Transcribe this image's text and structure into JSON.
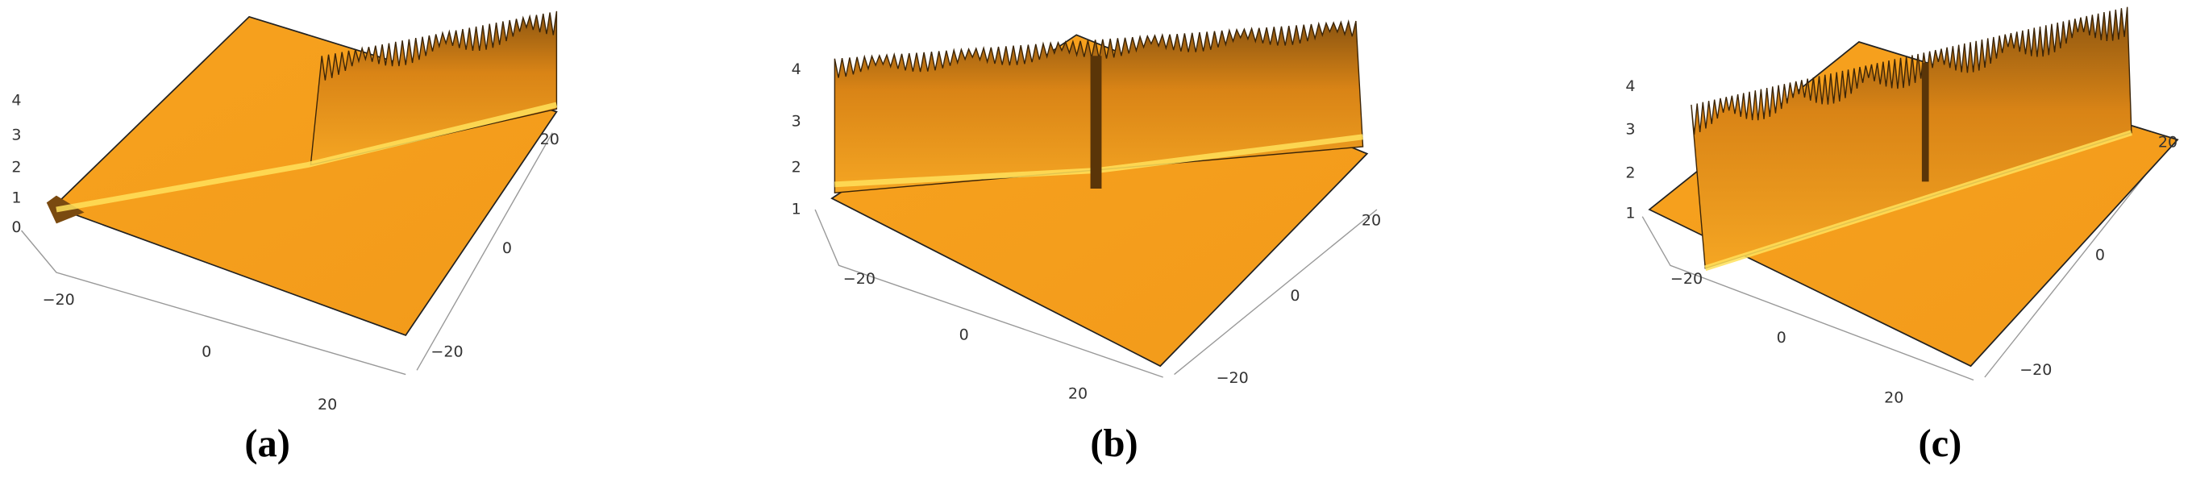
{
  "panels": [
    {
      "label": "(a)",
      "z_ticks": [
        "0",
        "1",
        "2",
        "3",
        "4"
      ],
      "x_ticks": [
        "−20",
        "0",
        "20"
      ],
      "y_ticks": [
        "−20",
        "0",
        "20"
      ]
    },
    {
      "label": "(b)",
      "z_ticks": [
        "1",
        "2",
        "3",
        "4"
      ],
      "x_ticks": [
        "−20",
        "0",
        "20"
      ],
      "y_ticks": [
        "−20",
        "0",
        "20"
      ]
    },
    {
      "label": "(c)",
      "z_ticks": [
        "1",
        "2",
        "3",
        "4"
      ],
      "x_ticks": [
        "−20",
        "0",
        "20"
      ],
      "y_ticks": [
        "−20",
        "0",
        "20"
      ]
    }
  ]
}
